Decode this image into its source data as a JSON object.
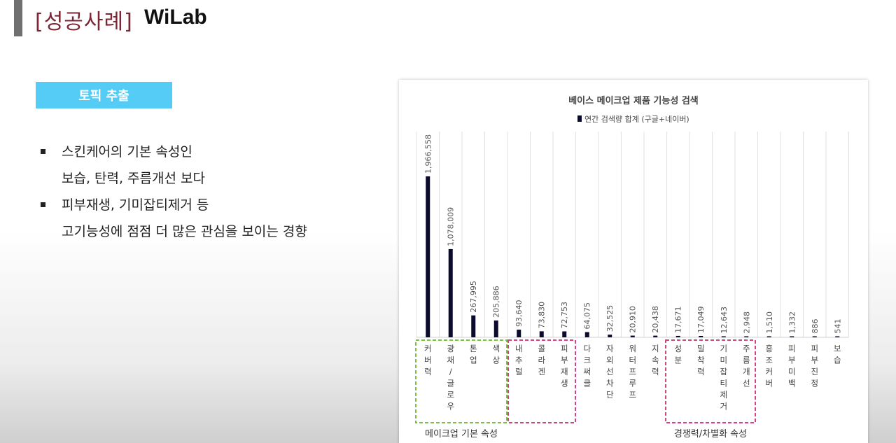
{
  "header": {
    "title": "[성공사례]",
    "logo": "WiLab"
  },
  "topic": {
    "label": "토픽 추출"
  },
  "bullets": [
    {
      "lines": [
        "스킨케어의 기본 속성인",
        "보습, 탄력, 주름개선 보다"
      ]
    },
    {
      "lines": [
        "피부재생, 기미잡티제거 등",
        "고기능성에 점점 더 많은 관심을 보이는 경향"
      ]
    }
  ],
  "chart_data": {
    "type": "bar",
    "title": "베이스 메이크업 제품 기능성 검색",
    "series": [
      {
        "name": "연간 검색량 합계 (구글+네이버)",
        "values": [
          1966558,
          1078009,
          267995,
          205886,
          93640,
          73830,
          72753,
          64075,
          32525,
          20910,
          20438,
          17671,
          17049,
          12643,
          2948,
          1510,
          1332,
          886,
          541
        ]
      }
    ],
    "value_labels": [
      "1,966,558",
      "1,078,009",
      "267,995",
      "205,886",
      "93,640",
      "73,830",
      "72,753",
      "64,075",
      "32,525",
      "20,910",
      "20,438",
      "17,671",
      "17,049",
      "12,643",
      "2,948",
      "1,510",
      "1,332",
      "886",
      "541"
    ],
    "categories": [
      "커버력",
      "광채/글로우",
      "톤업",
      "색상",
      "내추럴",
      "콜라겐",
      "피부재생",
      "다크써클",
      "자외선차단",
      "워터프루프",
      "지속력",
      "성분",
      "밀착력",
      "기미잡티제거",
      "주름개선",
      "홍조커버",
      "피부미백",
      "피부진정",
      "보습"
    ],
    "legend_position": "top-center",
    "grid": "vertical",
    "bar_color": "#0b0b2e",
    "groups": [
      {
        "label": "메이크업 기본 속성",
        "from": 0,
        "to": 3,
        "color": "#7ac142"
      },
      {
        "label": "",
        "from": 4,
        "to": 6,
        "color": "#d0457f"
      },
      {
        "label": "경쟁력/차별화 속성",
        "from": 11,
        "to": 14,
        "color": "#d0457f"
      }
    ]
  }
}
